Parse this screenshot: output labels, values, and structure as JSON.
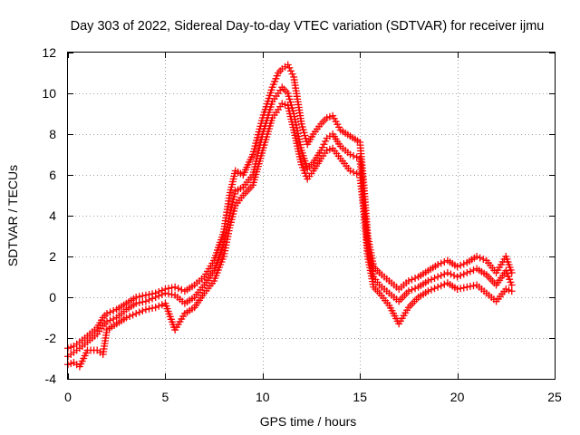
{
  "chart_data": {
    "type": "scatter",
    "title": "Day 303 of 2022, Sidereal Day-to-day VTEC variation (SDTVAR) for receiver ijmu",
    "xlabel": "GPS time / hours",
    "ylabel": "SDTVAR / TECUs",
    "xlim": [
      0,
      25
    ],
    "ylim": [
      -4,
      12
    ],
    "xticks": [
      0,
      5,
      10,
      15,
      20,
      25
    ],
    "yticks": [
      -4,
      -2,
      0,
      2,
      4,
      6,
      8,
      10,
      12
    ],
    "grid": true,
    "marker": "plus",
    "color": "#ff0000",
    "series": [
      {
        "name": "SDTVAR upper trace",
        "x": [
          0.0,
          0.3,
          0.6,
          1.0,
          1.5,
          1.8,
          2.0,
          2.5,
          3.0,
          3.5,
          4.0,
          4.5,
          5.0,
          5.5,
          6.0,
          6.5,
          7.0,
          7.5,
          8.0,
          8.3,
          8.6,
          9.0,
          9.5,
          10.0,
          10.5,
          10.8,
          11.0,
          11.3,
          11.6,
          12.0,
          12.3,
          12.6,
          13.0,
          13.3,
          13.6,
          14.0,
          14.5,
          15.0,
          15.2,
          15.4,
          15.7,
          16.0,
          16.5,
          17.0,
          17.5,
          18.0,
          18.5,
          19.0,
          19.5,
          20.0,
          20.5,
          21.0,
          21.5,
          22.0,
          22.5,
          22.8
        ],
        "y": [
          -2.5,
          -2.4,
          -2.2,
          -1.9,
          -1.5,
          -1.0,
          -0.8,
          -0.6,
          -0.3,
          0.0,
          0.1,
          0.2,
          0.4,
          0.5,
          0.3,
          0.6,
          1.0,
          1.8,
          3.2,
          5.0,
          6.2,
          6.0,
          7.0,
          8.8,
          10.3,
          11.0,
          11.2,
          11.4,
          10.8,
          8.5,
          7.5,
          8.0,
          8.5,
          8.8,
          8.9,
          8.2,
          7.9,
          7.6,
          5.5,
          3.0,
          1.5,
          1.2,
          0.8,
          0.4,
          0.8,
          1.0,
          1.3,
          1.6,
          1.8,
          1.5,
          1.7,
          2.0,
          1.8,
          1.2,
          2.0,
          1.2
        ]
      },
      {
        "name": "SDTVAR middle trace",
        "x": [
          0.0,
          0.3,
          0.6,
          1.0,
          1.5,
          1.8,
          2.0,
          2.5,
          3.0,
          3.5,
          4.0,
          4.5,
          5.0,
          5.5,
          6.0,
          6.5,
          7.0,
          7.5,
          8.0,
          8.3,
          8.6,
          9.0,
          9.5,
          10.0,
          10.5,
          10.8,
          11.0,
          11.3,
          11.6,
          12.0,
          12.3,
          12.6,
          13.0,
          13.3,
          13.6,
          14.0,
          14.5,
          15.0,
          15.2,
          15.4,
          15.7,
          16.0,
          16.5,
          17.0,
          17.5,
          18.0,
          18.5,
          19.0,
          19.5,
          20.0,
          20.5,
          21.0,
          21.5,
          22.0,
          22.5,
          22.8
        ],
        "y": [
          -2.9,
          -2.7,
          -2.5,
          -2.2,
          -1.8,
          -1.4,
          -1.2,
          -1.0,
          -0.6,
          -0.3,
          -0.2,
          0.0,
          0.2,
          0.1,
          -0.3,
          0.0,
          0.6,
          1.3,
          2.6,
          4.0,
          5.2,
          5.4,
          6.0,
          8.0,
          9.6,
          10.0,
          10.3,
          10.0,
          9.0,
          7.2,
          6.3,
          6.6,
          7.2,
          7.8,
          8.0,
          7.4,
          7.0,
          6.8,
          4.8,
          2.5,
          1.0,
          0.6,
          0.2,
          -0.2,
          0.3,
          0.5,
          0.8,
          1.0,
          1.2,
          1.0,
          1.2,
          1.4,
          1.1,
          0.6,
          1.3,
          0.6
        ]
      },
      {
        "name": "SDTVAR lower trace",
        "x": [
          0.0,
          0.3,
          0.6,
          1.0,
          1.5,
          1.8,
          2.0,
          2.5,
          3.0,
          3.5,
          4.0,
          4.5,
          5.0,
          5.5,
          6.0,
          6.5,
          7.0,
          7.5,
          8.0,
          8.3,
          8.6,
          9.0,
          9.5,
          10.0,
          10.5,
          10.8,
          11.0,
          11.3,
          11.6,
          12.0,
          12.3,
          12.6,
          13.0,
          13.3,
          13.6,
          14.0,
          14.5,
          15.0,
          15.2,
          15.4,
          15.7,
          16.0,
          16.5,
          17.0,
          17.5,
          18.0,
          18.5,
          19.0,
          19.5,
          20.0,
          20.5,
          21.0,
          21.5,
          22.0,
          22.5,
          22.8
        ],
        "y": [
          -3.3,
          -3.2,
          -3.4,
          -2.6,
          -2.6,
          -2.8,
          -1.6,
          -1.3,
          -1.0,
          -0.8,
          -0.6,
          -0.5,
          -0.3,
          -1.6,
          -0.8,
          -0.5,
          0.2,
          0.8,
          2.0,
          3.4,
          4.5,
          5.0,
          5.5,
          7.2,
          8.8,
          9.2,
          9.5,
          9.4,
          8.2,
          6.5,
          5.8,
          6.2,
          6.8,
          7.2,
          7.3,
          6.8,
          6.2,
          6.0,
          4.2,
          2.0,
          0.5,
          0.2,
          -0.4,
          -1.3,
          -0.5,
          0.0,
          0.3,
          0.5,
          0.7,
          0.4,
          0.5,
          0.6,
          0.2,
          -0.2,
          0.4,
          0.3
        ]
      }
    ]
  }
}
